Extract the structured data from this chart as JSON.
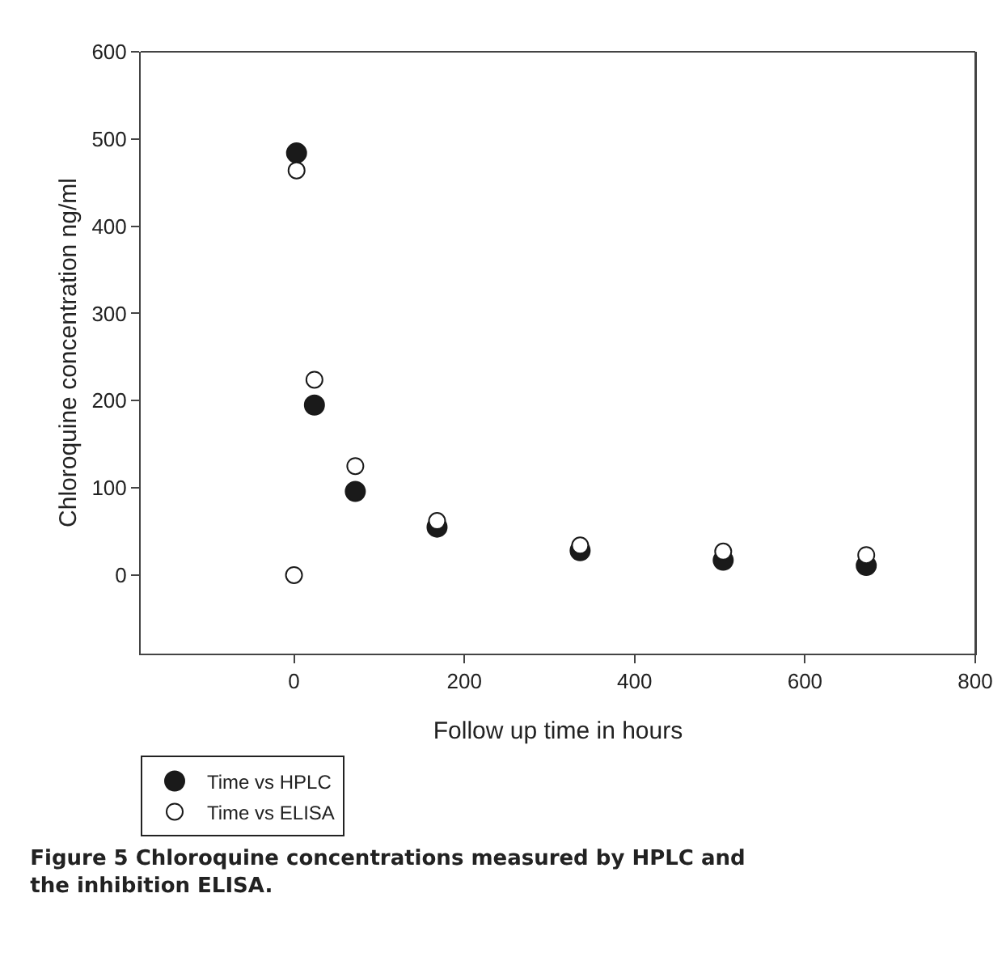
{
  "chart_data": {
    "type": "scatter",
    "title": "Figure 5 Chloroquine concentrations measured by HPLC and the inhibition ELISA.",
    "xlabel": "Follow up time in hours",
    "ylabel": "Chloroquine concentration ng/ml",
    "series": [
      {
        "name": "Time vs HPLC",
        "color": "#1a1a1a",
        "marker": "circle",
        "x": [
          3,
          24,
          72,
          168,
          336,
          504,
          672
        ],
        "values": [
          484,
          195,
          96,
          55,
          28,
          17,
          11
        ]
      },
      {
        "name": "Time vs ELISA",
        "color": "#ffffff",
        "marker": "circle",
        "x": [
          0,
          3,
          24,
          72,
          168,
          336,
          504,
          672
        ],
        "values": [
          0,
          464,
          224,
          125,
          62,
          34,
          27,
          23
        ]
      }
    ],
    "xlim": [
      -180,
      800
    ],
    "xticks": [
      0,
      200,
      400,
      600,
      800
    ],
    "ylim": [
      -90,
      600
    ],
    "yticks": [
      0,
      100,
      200,
      300,
      400,
      500,
      600
    ],
    "grid": false,
    "legend": "bottom left"
  }
}
